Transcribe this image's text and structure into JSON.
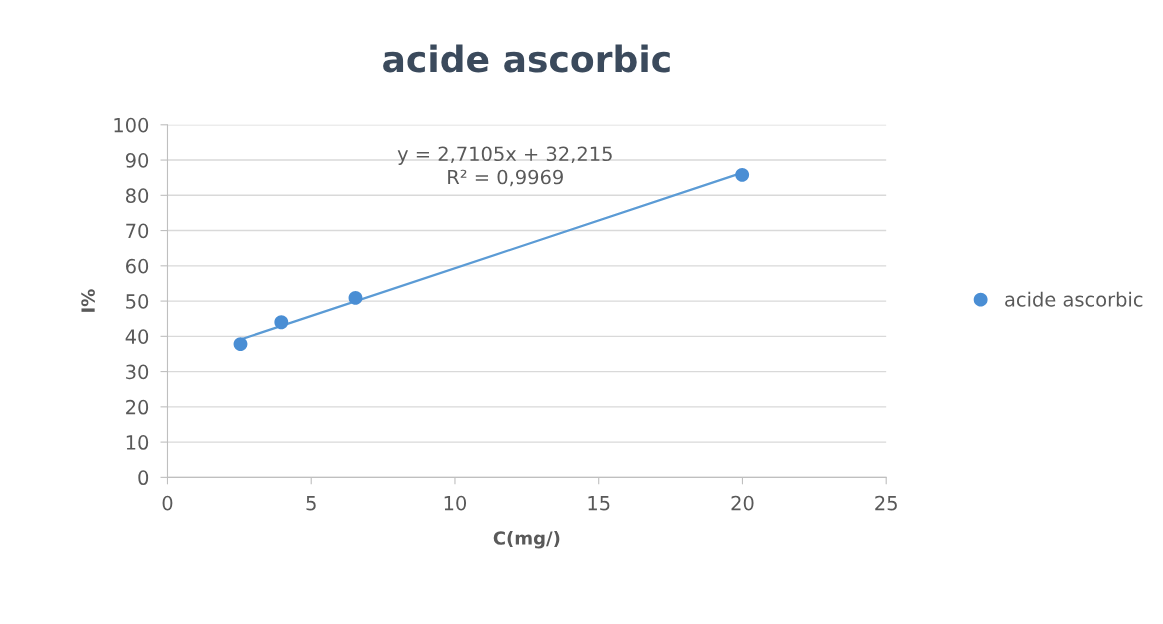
{
  "chart_data": {
    "type": "scatter",
    "title": "acide ascorbic",
    "xlabel": "C(mg/)",
    "ylabel": "I%",
    "xlim": [
      0,
      25
    ],
    "xticks": [
      0,
      5,
      10,
      15,
      20,
      25
    ],
    "ylim": [
      0,
      100
    ],
    "yticks": [
      0,
      10,
      20,
      30,
      40,
      50,
      60,
      70,
      80,
      90,
      100
    ],
    "grid": "y",
    "legend": "right",
    "annotations": [
      "y = 2,7105x + 32,215\nR² = 0,9969"
    ],
    "series": [
      {
        "name": "acide ascorbic",
        "color": "#4a8ed4",
        "marker": "circle",
        "x": [
          2.54,
          3.96,
          6.54,
          19.99
        ],
        "values": [
          37.8,
          44.0,
          50.9,
          85.8
        ]
      },
      {
        "type": "line",
        "marker": "none",
        "color": "#5b9bd5",
        "x": [
          2.54,
          19.99
        ],
        "values": [
          39.1,
          86.4
        ]
      }
    ]
  }
}
